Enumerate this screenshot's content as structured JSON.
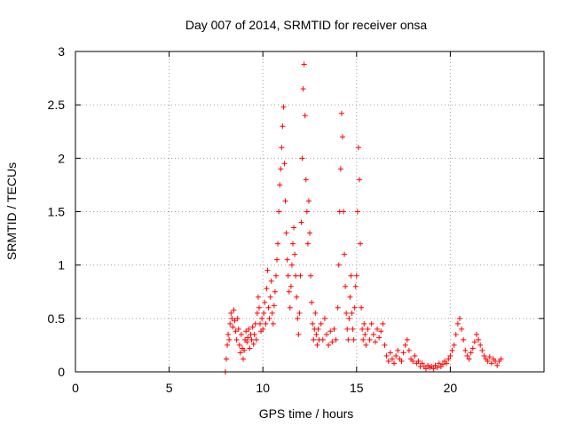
{
  "chart_data": {
    "type": "scatter",
    "title": "Day 007 of 2014, SRMTID for receiver onsa",
    "xlabel": "GPS time / hours",
    "ylabel": "SRMTID / TECUs",
    "xlim": [
      0,
      25
    ],
    "ylim": [
      0,
      3
    ],
    "xticks": [
      0,
      5,
      10,
      15,
      20
    ],
    "yticks": [
      0,
      0.5,
      1,
      1.5,
      2,
      2.5,
      3
    ],
    "xtick_labels": [
      "0",
      "5",
      "10",
      "15",
      "20"
    ],
    "ytick_labels": [
      "0",
      "0.5",
      "1",
      "1.5",
      "2",
      "2.5",
      "3"
    ],
    "grid": true,
    "marker": "+",
    "series": [
      {
        "name": "onsa",
        "color": "#ff0000",
        "points": [
          [
            8.0,
            0.0
          ],
          [
            8.05,
            0.12
          ],
          [
            8.1,
            0.25
          ],
          [
            8.15,
            0.35
          ],
          [
            8.2,
            0.3
          ],
          [
            8.25,
            0.45
          ],
          [
            8.3,
            0.55
          ],
          [
            8.35,
            0.5
          ],
          [
            8.4,
            0.42
          ],
          [
            8.45,
            0.58
          ],
          [
            8.5,
            0.48
          ],
          [
            8.55,
            0.38
          ],
          [
            8.6,
            0.3
          ],
          [
            8.65,
            0.5
          ],
          [
            8.7,
            0.4
          ],
          [
            8.75,
            0.25
          ],
          [
            8.8,
            0.18
          ],
          [
            8.85,
            0.35
          ],
          [
            8.9,
            0.22
          ],
          [
            8.95,
            0.12
          ],
          [
            9.0,
            0.2
          ],
          [
            9.05,
            0.3
          ],
          [
            9.1,
            0.38
          ],
          [
            9.15,
            0.28
          ],
          [
            9.2,
            0.32
          ],
          [
            9.25,
            0.4
          ],
          [
            9.3,
            0.22
          ],
          [
            9.35,
            0.35
          ],
          [
            9.4,
            0.3
          ],
          [
            9.45,
            0.42
          ],
          [
            9.5,
            0.26
          ],
          [
            9.55,
            0.35
          ],
          [
            9.6,
            0.45
          ],
          [
            9.65,
            0.3
          ],
          [
            9.7,
            0.55
          ],
          [
            9.75,
            0.7
          ],
          [
            9.8,
            0.6
          ],
          [
            9.85,
            0.45
          ],
          [
            9.9,
            0.38
          ],
          [
            9.95,
            0.5
          ],
          [
            10.0,
            0.4
          ],
          [
            10.05,
            0.55
          ],
          [
            10.1,
            0.65
          ],
          [
            10.15,
            0.45
          ],
          [
            10.2,
            0.78
          ],
          [
            10.25,
            0.95
          ],
          [
            10.3,
            0.6
          ],
          [
            10.35,
            0.5
          ],
          [
            10.4,
            0.7
          ],
          [
            10.45,
            0.85
          ],
          [
            10.5,
            0.55
          ],
          [
            10.55,
            0.45
          ],
          [
            10.6,
            0.62
          ],
          [
            10.65,
            0.75
          ],
          [
            10.7,
            0.9
          ],
          [
            10.75,
            1.05
          ],
          [
            10.8,
            1.2
          ],
          [
            10.85,
            1.5
          ],
          [
            10.9,
            1.75
          ],
          [
            10.95,
            1.9
          ],
          [
            11.0,
            2.1
          ],
          [
            11.05,
            2.3
          ],
          [
            11.1,
            2.48
          ],
          [
            11.15,
            1.95
          ],
          [
            11.2,
            1.6
          ],
          [
            11.25,
            1.3
          ],
          [
            11.3,
            1.05
          ],
          [
            11.35,
            0.9
          ],
          [
            11.4,
            0.75
          ],
          [
            11.45,
            0.6
          ],
          [
            11.5,
            0.8
          ],
          [
            11.55,
            1.0
          ],
          [
            11.6,
            1.2
          ],
          [
            11.65,
            1.35
          ],
          [
            11.7,
            1.1
          ],
          [
            11.75,
            0.9
          ],
          [
            11.8,
            0.7
          ],
          [
            11.85,
            0.5
          ],
          [
            11.9,
            0.35
          ],
          [
            11.95,
            0.55
          ],
          [
            12.0,
            0.9
          ],
          [
            12.05,
            1.4
          ],
          [
            12.1,
            2.0
          ],
          [
            12.15,
            2.65
          ],
          [
            12.2,
            2.88
          ],
          [
            12.25,
            2.4
          ],
          [
            12.3,
            1.8
          ],
          [
            12.35,
            1.5
          ],
          [
            12.4,
            1.2
          ],
          [
            12.45,
            1.6
          ],
          [
            12.5,
            1.3
          ],
          [
            12.55,
            0.9
          ],
          [
            12.6,
            0.65
          ],
          [
            12.65,
            0.45
          ],
          [
            12.7,
            0.3
          ],
          [
            12.75,
            0.4
          ],
          [
            12.8,
            0.55
          ],
          [
            12.85,
            0.35
          ],
          [
            12.9,
            0.25
          ],
          [
            12.95,
            0.4
          ],
          [
            13.0,
            0.3
          ],
          [
            13.1,
            0.45
          ],
          [
            13.2,
            0.3
          ],
          [
            13.3,
            0.5
          ],
          [
            13.4,
            0.35
          ],
          [
            13.5,
            0.25
          ],
          [
            13.6,
            0.38
          ],
          [
            13.7,
            0.28
          ],
          [
            13.8,
            0.4
          ],
          [
            13.9,
            0.3
          ],
          [
            14.0,
            0.6
          ],
          [
            14.05,
            1.0
          ],
          [
            14.1,
            1.5
          ],
          [
            14.15,
            1.9
          ],
          [
            14.2,
            2.42
          ],
          [
            14.25,
            2.2
          ],
          [
            14.3,
            1.5
          ],
          [
            14.35,
            1.1
          ],
          [
            14.4,
            0.8
          ],
          [
            14.45,
            0.55
          ],
          [
            14.5,
            0.4
          ],
          [
            14.55,
            0.3
          ],
          [
            14.6,
            0.5
          ],
          [
            14.65,
            0.7
          ],
          [
            14.7,
            0.9
          ],
          [
            14.75,
            0.55
          ],
          [
            14.8,
            0.4
          ],
          [
            14.85,
            0.3
          ],
          [
            14.9,
            0.6
          ],
          [
            14.95,
            0.8
          ],
          [
            15.0,
            0.9
          ],
          [
            15.05,
            1.5
          ],
          [
            15.1,
            2.1
          ],
          [
            15.15,
            1.8
          ],
          [
            15.2,
            1.2
          ],
          [
            15.25,
            0.6
          ],
          [
            15.3,
            0.4
          ],
          [
            15.35,
            0.3
          ],
          [
            15.4,
            0.45
          ],
          [
            15.45,
            0.35
          ],
          [
            15.5,
            0.25
          ],
          [
            15.6,
            0.4
          ],
          [
            15.7,
            0.3
          ],
          [
            15.8,
            0.45
          ],
          [
            15.9,
            0.35
          ],
          [
            16.0,
            0.28
          ],
          [
            16.1,
            0.4
          ],
          [
            16.2,
            0.32
          ],
          [
            16.3,
            0.38
          ],
          [
            16.4,
            0.45
          ],
          [
            16.5,
            0.25
          ],
          [
            16.6,
            0.15
          ],
          [
            16.7,
            0.1
          ],
          [
            16.8,
            0.18
          ],
          [
            16.9,
            0.12
          ],
          [
            17.0,
            0.08
          ],
          [
            17.1,
            0.15
          ],
          [
            17.2,
            0.2
          ],
          [
            17.3,
            0.12
          ],
          [
            17.4,
            0.1
          ],
          [
            17.5,
            0.18
          ],
          [
            17.6,
            0.25
          ],
          [
            17.7,
            0.3
          ],
          [
            17.8,
            0.2
          ],
          [
            17.9,
            0.12
          ],
          [
            18.0,
            0.1
          ],
          [
            18.1,
            0.15
          ],
          [
            18.2,
            0.08
          ],
          [
            18.3,
            0.1
          ],
          [
            18.4,
            0.05
          ],
          [
            18.5,
            0.08
          ],
          [
            18.6,
            0.05
          ],
          [
            18.7,
            0.03
          ],
          [
            18.8,
            0.06
          ],
          [
            18.9,
            0.04
          ],
          [
            19.0,
            0.05
          ],
          [
            19.1,
            0.03
          ],
          [
            19.2,
            0.06
          ],
          [
            19.3,
            0.04
          ],
          [
            19.4,
            0.08
          ],
          [
            19.5,
            0.05
          ],
          [
            19.6,
            0.07
          ],
          [
            19.7,
            0.1
          ],
          [
            19.8,
            0.08
          ],
          [
            19.9,
            0.12
          ],
          [
            20.0,
            0.15
          ],
          [
            20.1,
            0.2
          ],
          [
            20.2,
            0.25
          ],
          [
            20.3,
            0.35
          ],
          [
            20.4,
            0.45
          ],
          [
            20.5,
            0.5
          ],
          [
            20.6,
            0.4
          ],
          [
            20.7,
            0.3
          ],
          [
            20.8,
            0.2
          ],
          [
            20.9,
            0.15
          ],
          [
            21.0,
            0.12
          ],
          [
            21.1,
            0.18
          ],
          [
            21.2,
            0.22
          ],
          [
            21.3,
            0.28
          ],
          [
            21.4,
            0.35
          ],
          [
            21.5,
            0.3
          ],
          [
            21.6,
            0.25
          ],
          [
            21.7,
            0.2
          ],
          [
            21.8,
            0.15
          ],
          [
            21.9,
            0.12
          ],
          [
            22.0,
            0.1
          ],
          [
            22.1,
            0.14
          ],
          [
            22.2,
            0.08
          ],
          [
            22.3,
            0.12
          ],
          [
            22.4,
            0.1
          ],
          [
            22.5,
            0.06
          ],
          [
            22.6,
            0.1
          ],
          [
            22.7,
            0.12
          ]
        ]
      }
    ]
  }
}
